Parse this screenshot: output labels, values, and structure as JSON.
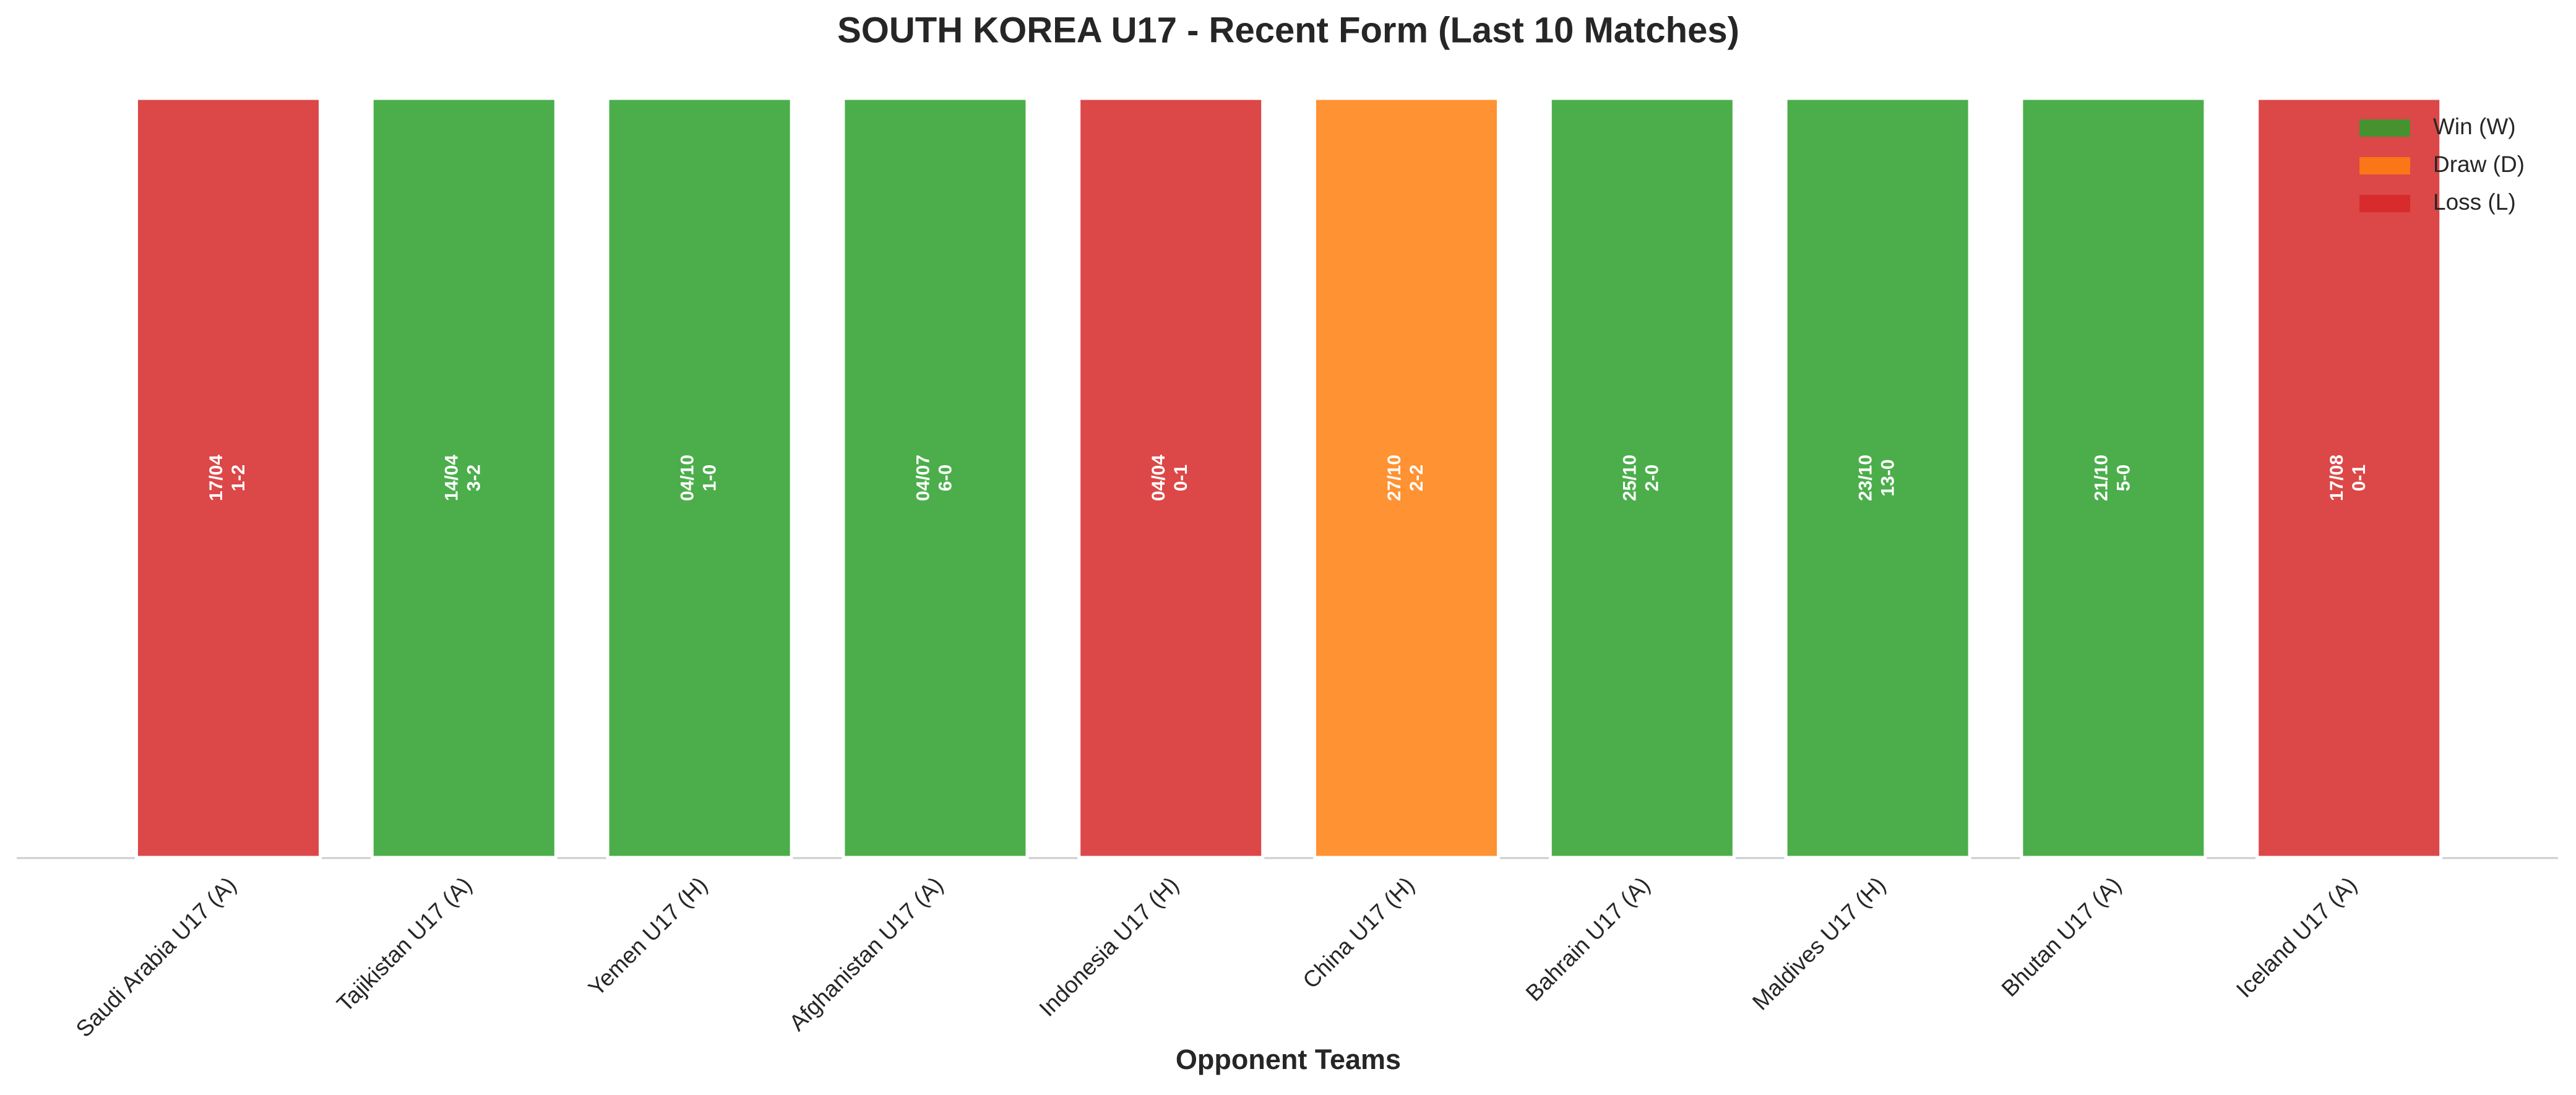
{
  "chart_data": {
    "type": "bar",
    "title": "SOUTH KOREA U17 - Recent Form (Last 10 Matches)",
    "x_label": "Opponent Teams",
    "categories": [
      "Saudi Arabia U17 (A)",
      "Tajikistan U17 (A)",
      "Yemen U17 (H)",
      "Afghanistan U17 (A)",
      "Indonesia U17 (H)",
      "China U17 (H)",
      "Bahrain U17 (A)",
      "Maldives U17 (H)",
      "Bhutan U17 (A)",
      "Iceland U17 (A)"
    ],
    "values": [
      1,
      1,
      1,
      1,
      1,
      1,
      1,
      1,
      1,
      1
    ],
    "results": [
      "L",
      "W",
      "W",
      "W",
      "L",
      "D",
      "W",
      "W",
      "W",
      "L"
    ],
    "dates": [
      "17/04",
      "14/04",
      "04/10",
      "04/07",
      "04/04",
      "27/10",
      "25/10",
      "23/10",
      "21/10",
      "17/08"
    ],
    "scores": [
      "1-2",
      "3-2",
      "1-0",
      "6-0",
      "0-1",
      "2-2",
      "2-0",
      "13-0",
      "5-0",
      "0-1"
    ],
    "ylim": [
      0,
      1
    ],
    "legend": [
      {
        "code": "W",
        "name": "Win (W)",
        "color": "#2ca02c"
      },
      {
        "code": "D",
        "name": "Draw (D)",
        "color": "#ff7f0e"
      },
      {
        "code": "L",
        "name": "Loss (L)",
        "color": "#d62728"
      }
    ],
    "legend_position": "upper right"
  }
}
